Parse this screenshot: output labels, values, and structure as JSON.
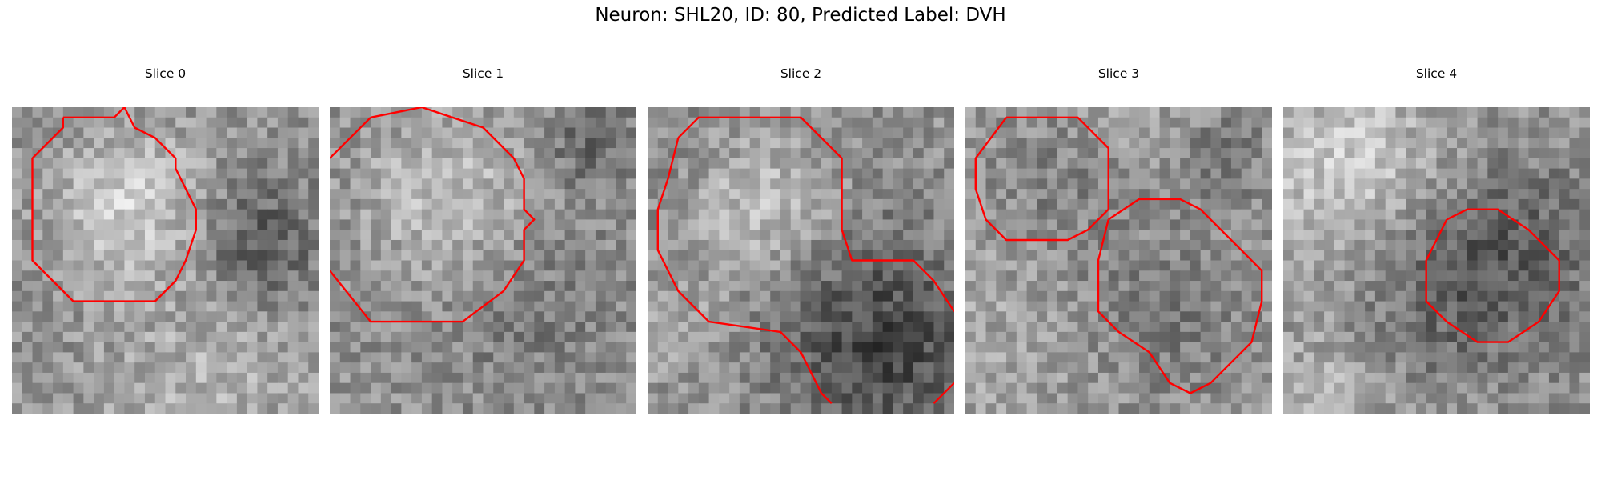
{
  "figure": {
    "title": "Neuron: SHL20, ID: 80, Predicted Label: DVH",
    "contour_color": "#ff0000"
  },
  "slices": [
    {
      "title": "Slice 0"
    },
    {
      "title": "Slice 1"
    },
    {
      "title": "Slice 2"
    },
    {
      "title": "Slice 3"
    },
    {
      "title": "Slice 4"
    }
  ]
}
